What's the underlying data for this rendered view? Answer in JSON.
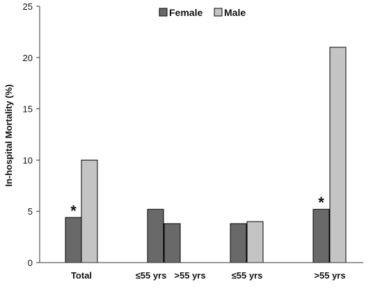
{
  "chart_data": {
    "type": "bar",
    "ylabel": "In-hospital Mortality (%)",
    "ylim": [
      0,
      25
    ],
    "yticks": [
      0,
      5,
      10,
      15,
      20,
      25
    ],
    "grid": false,
    "legend_position": "top-center",
    "series": [
      {
        "name": "Female",
        "color": "#696969"
      },
      {
        "name": "Male",
        "color": "#c4c4c4"
      }
    ],
    "categories": [
      "Total",
      "≤55 yrs",
      ">55 yrs",
      "≤55 yrs",
      ">55 yrs"
    ],
    "bars": [
      {
        "series": "Female",
        "value": 4.4,
        "annotation": "*"
      },
      {
        "series": "Male",
        "value": 10
      },
      {
        "series": "Female",
        "value": 5.2
      },
      {
        "series": "Female",
        "value": 3.8
      },
      {
        "series": "Female",
        "value": 3.8
      },
      {
        "series": "Male",
        "value": 4.0
      },
      {
        "series": "Female",
        "value": 5.2,
        "annotation": "*"
      },
      {
        "series": "Male",
        "value": 21
      }
    ]
  }
}
